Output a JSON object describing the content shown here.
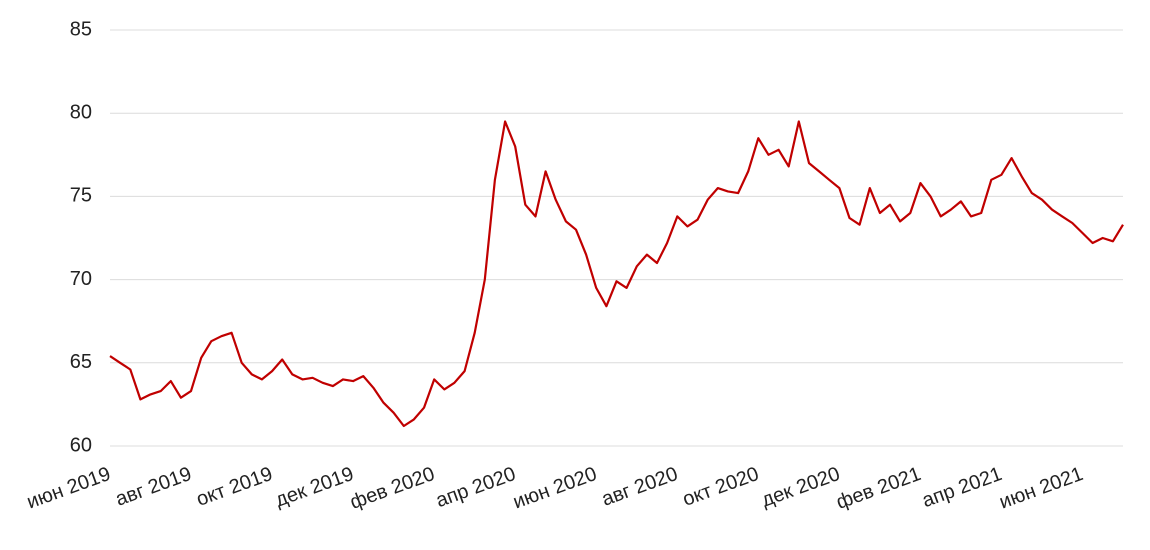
{
  "chart_data": {
    "type": "line",
    "categories": [
      "июн 2019",
      null,
      null,
      null,
      null,
      null,
      null,
      null,
      "авг 2019",
      null,
      null,
      null,
      null,
      null,
      null,
      null,
      "окт 2019",
      null,
      null,
      null,
      null,
      null,
      null,
      null,
      "дек 2019",
      null,
      null,
      null,
      null,
      null,
      null,
      null,
      "фев 2020",
      null,
      null,
      null,
      null,
      null,
      null,
      null,
      "апр 2020",
      null,
      null,
      null,
      null,
      null,
      null,
      null,
      "июн 2020",
      null,
      null,
      null,
      null,
      null,
      null,
      null,
      "авг 2020",
      null,
      null,
      null,
      null,
      null,
      null,
      null,
      "окт 2020",
      null,
      null,
      null,
      null,
      null,
      null,
      null,
      "дек 2020",
      null,
      null,
      null,
      null,
      null,
      null,
      null,
      "фев 2021",
      null,
      null,
      null,
      null,
      null,
      null,
      null,
      "апр 2021",
      null,
      null,
      null,
      null,
      null,
      null,
      null,
      "июн 2021",
      null,
      null,
      null,
      null
    ],
    "series": [
      {
        "color": "#c00000",
        "values": [
          65.4,
          65.0,
          64.6,
          62.8,
          63.1,
          63.3,
          63.9,
          62.9,
          63.3,
          65.3,
          66.3,
          66.6,
          66.8,
          65.0,
          64.3,
          64.0,
          64.5,
          65.2,
          64.3,
          64.0,
          64.1,
          63.8,
          63.6,
          64.0,
          63.9,
          64.2,
          63.5,
          62.6,
          62.0,
          61.2,
          61.6,
          62.3,
          64.0,
          63.4,
          63.8,
          64.5,
          66.8,
          70.0,
          76.0,
          79.5,
          78.0,
          74.5,
          73.8,
          76.5,
          74.8,
          73.5,
          73.0,
          71.5,
          69.5,
          68.4,
          69.9,
          69.5,
          70.8,
          71.5,
          71.0,
          72.2,
          73.8,
          73.2,
          73.6,
          74.8,
          75.5,
          75.3,
          75.2,
          76.5,
          78.5,
          77.5,
          77.8,
          76.8,
          79.5,
          77.0,
          76.5,
          76.0,
          75.5,
          73.7,
          73.3,
          75.5,
          74.0,
          74.5,
          73.5,
          74.0,
          75.8,
          75.0,
          73.8,
          74.2,
          74.7,
          73.8,
          74.0,
          76.0,
          76.3,
          77.3,
          76.2,
          75.2,
          74.8,
          74.2,
          73.8,
          73.4,
          72.8,
          72.2,
          72.5,
          72.3,
          73.3
        ]
      }
    ],
    "ylim": [
      60,
      85
    ],
    "yticks": [
      60,
      65,
      70,
      75,
      80,
      85
    ],
    "grid": true
  }
}
